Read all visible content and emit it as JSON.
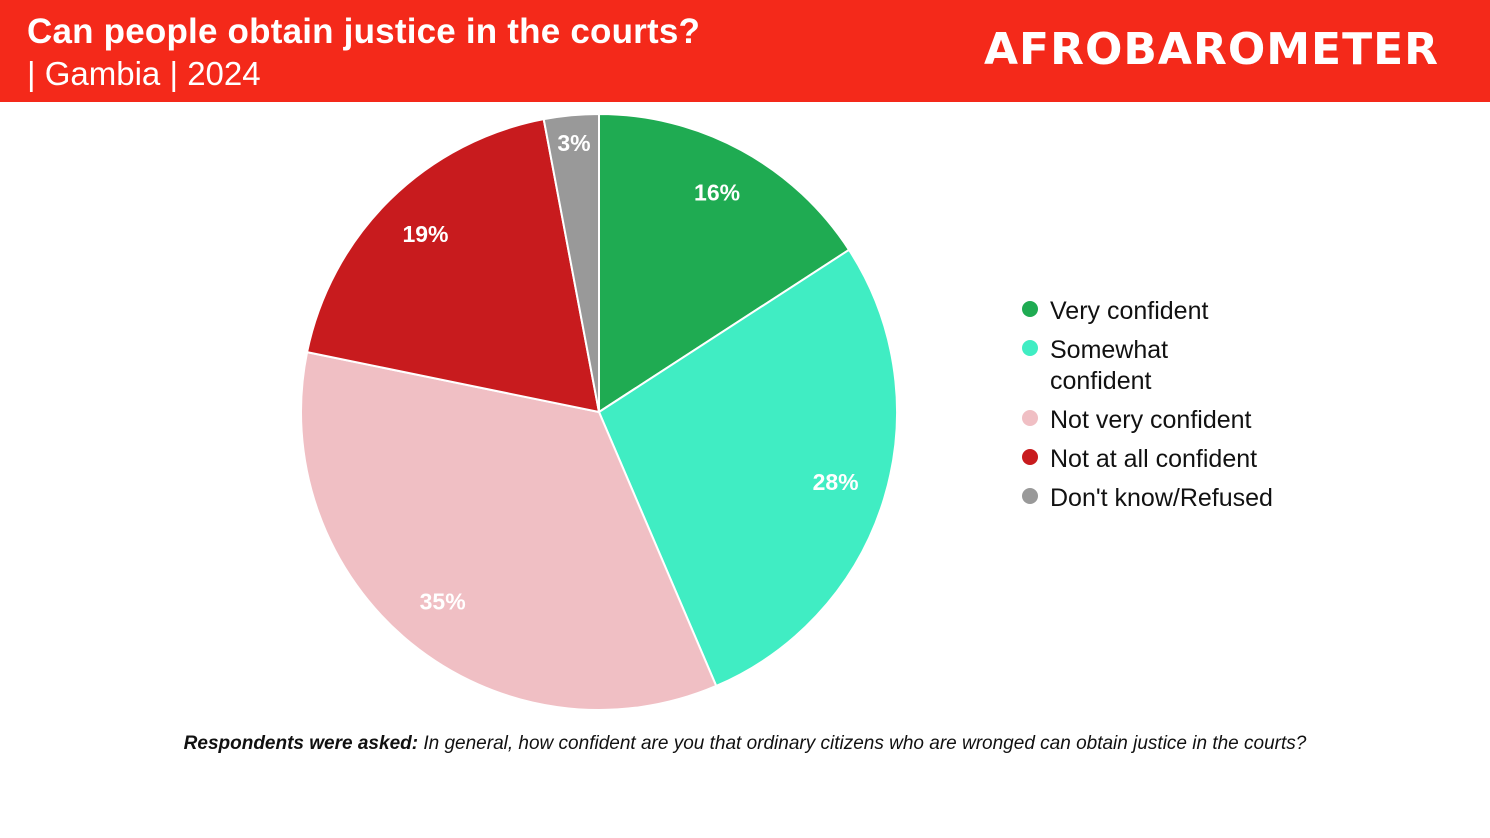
{
  "header": {
    "title": "Can people obtain justice in the courts?",
    "subtitle": "| Gambia | 2024",
    "logo_text": "AFROBAROMETER",
    "background_color": "#f4291a"
  },
  "chart_data": {
    "type": "pie",
    "title": "Can people obtain justice in the courts?",
    "start": "12 o'clock, clockwise",
    "slices": [
      {
        "label": "Very confident",
        "value": 16,
        "display": "16%",
        "color": "#1fab52"
      },
      {
        "label": "Somewhat confident",
        "value": 28,
        "display": "28%",
        "color": "#40edc3"
      },
      {
        "label": "Not very confident",
        "value": 35,
        "display": "35%",
        "color": "#f0bfc4"
      },
      {
        "label": "Not at all confident",
        "value": 19,
        "display": "19%",
        "color": "#c81b1e"
      },
      {
        "label": "Don't know/Refused",
        "value": 3,
        "display": "3%",
        "color": "#999999"
      }
    ],
    "legend_position": "right"
  },
  "legend": {
    "items": [
      {
        "label": "Very confident",
        "color": "#1fab52"
      },
      {
        "label": "Somewhat confident",
        "color": "#40edc3"
      },
      {
        "label": "Not very confident",
        "color": "#f0bfc4"
      },
      {
        "label": "Not at all confident",
        "color": "#c81b1e"
      },
      {
        "label": "Don't know/Refused",
        "color": "#999999"
      }
    ]
  },
  "footnote": {
    "label": "Respondents were asked:",
    "text": "In general, how confident are you that ordinary citizens who are wronged can obtain justice in the courts?"
  }
}
